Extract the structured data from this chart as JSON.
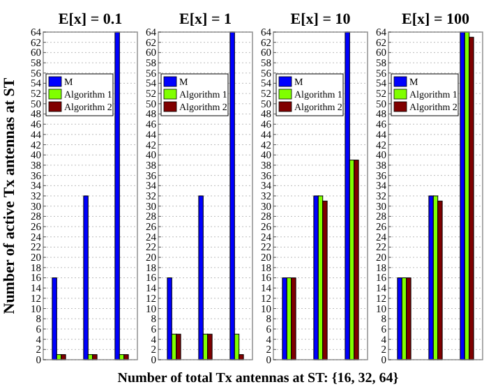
{
  "chart_data": [
    {
      "type": "bar",
      "title": "E[x] = 0.1",
      "ylabel": "Number of active Tx antennas at ST",
      "xlabel": "Number of total Tx antennas at ST: {16, 32, 64}",
      "categories": [
        null,
        null,
        null
      ],
      "ylim": [
        0,
        64
      ],
      "yticks": [
        0,
        2,
        4,
        6,
        8,
        10,
        12,
        14,
        16,
        18,
        20,
        22,
        24,
        26,
        28,
        30,
        32,
        34,
        36,
        38,
        40,
        42,
        44,
        46,
        48,
        50,
        52,
        54,
        56,
        58,
        60,
        62,
        64
      ],
      "grid": "y",
      "legend": "top left",
      "series": [
        {
          "name": "M",
          "color": "#0000ff",
          "values": [
            16,
            32,
            64
          ]
        },
        {
          "name": "Algorithm 1",
          "color": "#80ff00",
          "values": [
            1,
            1,
            1
          ]
        },
        {
          "name": "Algorithm 2",
          "color": "#800000",
          "values": [
            1,
            1,
            1
          ]
        }
      ]
    },
    {
      "type": "bar",
      "title": "E[x] = 1",
      "categories": [
        null,
        null,
        null
      ],
      "ylim": [
        0,
        64
      ],
      "yticks": [
        0,
        2,
        4,
        6,
        8,
        10,
        12,
        14,
        16,
        18,
        20,
        22,
        24,
        26,
        28,
        30,
        32,
        34,
        36,
        38,
        40,
        42,
        44,
        46,
        48,
        50,
        52,
        54,
        56,
        58,
        60,
        62,
        64
      ],
      "grid": "y",
      "legend": "top left",
      "series": [
        {
          "name": "M",
          "color": "#0000ff",
          "values": [
            16,
            32,
            64
          ]
        },
        {
          "name": "Algorithm 1",
          "color": "#80ff00",
          "values": [
            5,
            5,
            5
          ]
        },
        {
          "name": "Algorithm 2",
          "color": "#800000",
          "values": [
            5,
            5,
            1
          ]
        }
      ]
    },
    {
      "type": "bar",
      "title": "E[x] = 10",
      "categories": [
        null,
        null,
        null
      ],
      "ylim": [
        0,
        64
      ],
      "yticks": [
        0,
        2,
        4,
        6,
        8,
        10,
        12,
        14,
        16,
        18,
        20,
        22,
        24,
        26,
        28,
        30,
        32,
        34,
        36,
        38,
        40,
        42,
        44,
        46,
        48,
        50,
        52,
        54,
        56,
        58,
        60,
        62,
        64
      ],
      "grid": "y",
      "legend": "top left",
      "series": [
        {
          "name": "M",
          "color": "#0000ff",
          "values": [
            16,
            32,
            64
          ]
        },
        {
          "name": "Algorithm 1",
          "color": "#80ff00",
          "values": [
            16,
            32,
            39
          ]
        },
        {
          "name": "Algorithm 2",
          "color": "#800000",
          "values": [
            16,
            31,
            39
          ]
        }
      ]
    },
    {
      "type": "bar",
      "title": "E[x] = 100",
      "categories": [
        null,
        null,
        null
      ],
      "ylim": [
        0,
        64
      ],
      "yticks": [
        0,
        2,
        4,
        6,
        8,
        10,
        12,
        14,
        16,
        18,
        20,
        22,
        24,
        26,
        28,
        30,
        32,
        34,
        36,
        38,
        40,
        42,
        44,
        46,
        48,
        50,
        52,
        54,
        56,
        58,
        60,
        62,
        64
      ],
      "grid": "y",
      "legend": "top left",
      "series": [
        {
          "name": "M",
          "color": "#0000ff",
          "values": [
            16,
            32,
            64
          ]
        },
        {
          "name": "Algorithm 1",
          "color": "#80ff00",
          "values": [
            16,
            32,
            64
          ]
        },
        {
          "name": "Algorithm 2",
          "color": "#800000",
          "values": [
            16,
            31,
            63
          ]
        }
      ]
    }
  ]
}
